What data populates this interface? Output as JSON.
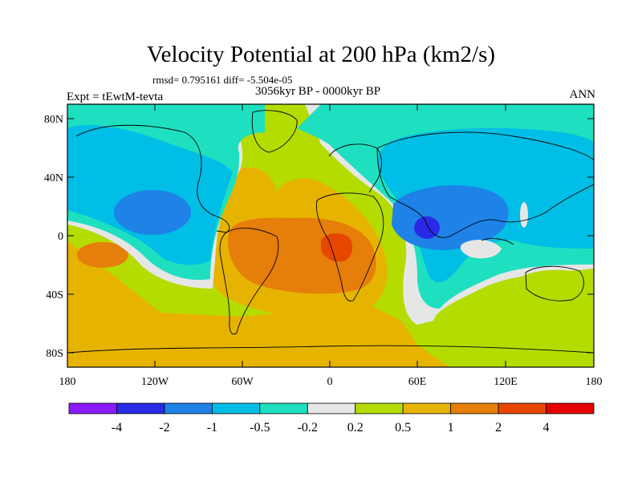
{
  "header": {
    "title": "Velocity Potential at 200 hPa (km2/s)",
    "stats": "rmsd= 0.795161 diff= -5.504e-05",
    "period": "3056kyr BP - 0000kyr BP",
    "experiment": "Expt = tEwtM-tevta",
    "season": "ANN"
  },
  "axes": {
    "lat_labels": [
      "80N",
      "40N",
      "0",
      "40S",
      "80S"
    ],
    "lon_labels": [
      "180",
      "120W",
      "60W",
      "0",
      "60E",
      "120E",
      "180"
    ]
  },
  "colorbar": {
    "colors": [
      "#8c1aff",
      "#2a2ae6",
      "#1e82e6",
      "#00bee6",
      "#1ee0c0",
      "#e6e6e6",
      "#b4dc00",
      "#e6b400",
      "#e67e0a",
      "#e64600",
      "#e60000"
    ],
    "labels": [
      "-4",
      "-2",
      "-1",
      "-0.5",
      "-0.2",
      "0.2",
      "0.5",
      "1",
      "2",
      "4"
    ]
  }
}
